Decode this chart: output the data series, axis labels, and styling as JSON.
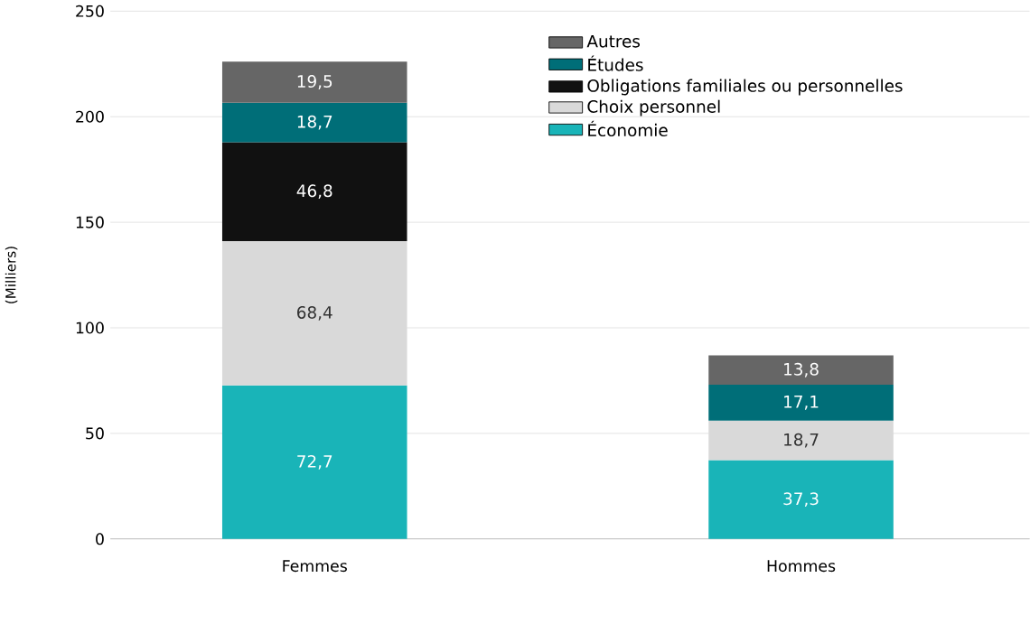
{
  "chart_data": {
    "type": "bar",
    "stacked": true,
    "ylabel": "(Milliers)",
    "categories": [
      "Femmes",
      "Hommes"
    ],
    "series": [
      {
        "name": "Économie",
        "color": "#19b4b8",
        "values": [
          72.7,
          37.3
        ],
        "value_labels": [
          "72,7",
          "37,3"
        ]
      },
      {
        "name": "Choix personnel",
        "color": "#d9d9d9",
        "values": [
          68.4,
          18.7
        ],
        "value_labels": [
          "68,4",
          "18,7"
        ]
      },
      {
        "name": "Obligations familiales ou personnelles",
        "color": "#111111",
        "values": [
          46.8,
          null
        ],
        "value_labels": [
          "46,8",
          null
        ]
      },
      {
        "name": "Études",
        "color": "#006e78",
        "values": [
          18.7,
          17.1
        ],
        "value_labels": [
          "18,7",
          "17,1"
        ]
      },
      {
        "name": "Autres",
        "color": "#666666",
        "values": [
          19.5,
          13.8
        ],
        "value_labels": [
          "19,5",
          "13,8"
        ]
      }
    ],
    "ylim": [
      0,
      250
    ],
    "yticks": [
      0,
      50,
      100,
      150,
      200,
      250
    ],
    "grid": "y",
    "legend": "top right"
  }
}
